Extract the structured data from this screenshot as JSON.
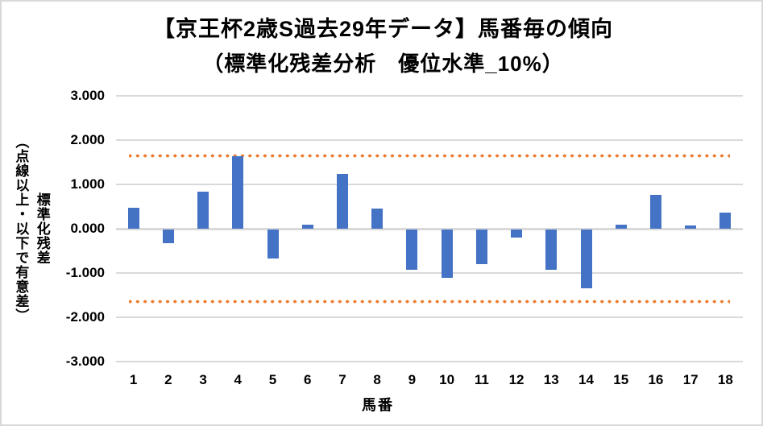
{
  "chart_data": {
    "type": "bar",
    "title": "【京王杯2歳S過去29年データ】馬番毎の傾向",
    "subtitle": "（標準化残差分析　優位水準_10%）",
    "xlabel": "馬番",
    "ylabel": "標準化残差",
    "ylabel_note": "（点線以上・以下で有意差）",
    "categories": [
      "1",
      "2",
      "3",
      "4",
      "5",
      "6",
      "7",
      "8",
      "9",
      "10",
      "11",
      "12",
      "13",
      "14",
      "15",
      "16",
      "17",
      "18"
    ],
    "values": [
      0.47,
      -0.31,
      0.84,
      1.63,
      -0.66,
      0.09,
      1.23,
      0.46,
      -0.9,
      -1.09,
      -0.78,
      -0.19,
      -0.9,
      -1.32,
      0.1,
      0.76,
      0.08,
      0.37
    ],
    "yticks": [
      "3.000",
      "2.000",
      "1.000",
      "0.000",
      "-1.000",
      "-2.000",
      "-3.000"
    ],
    "ylim": [
      -3,
      3
    ],
    "significance_lines": [
      1.645,
      -1.645
    ],
    "grid": true,
    "legend": "none",
    "colors": {
      "bar": "#4472C4",
      "significance_dots": "#ED7D31",
      "gridline": "#D9D9D9",
      "text": "#000000",
      "frame": "#D9D9D9"
    }
  }
}
